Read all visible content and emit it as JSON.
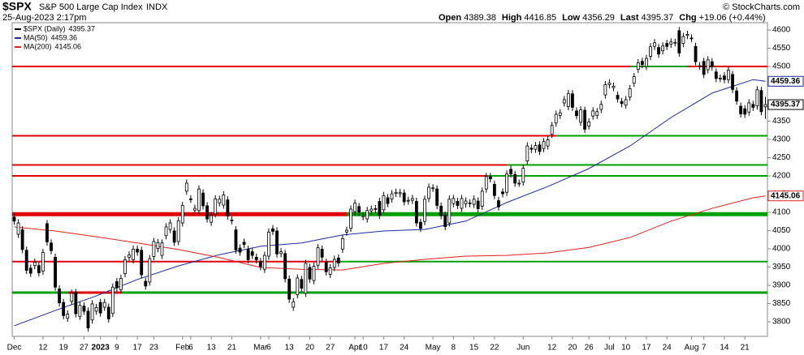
{
  "chart_data": {
    "type": "candlestick",
    "symbol": "$SPX",
    "title": "S&P 500 Large Cap Index",
    "exchange": "INDX",
    "date": "25-Aug-2023 2:17pm",
    "credit": "© StockCharts.com",
    "quote_labels": [
      "Open",
      "High",
      "Low",
      "Last",
      "Chg"
    ],
    "change": "+19.06 (+0.44%)",
    "xlim": [
      -0.5,
      183.5
    ],
    "ylim": [
      3760,
      4620
    ],
    "yticks": [
      3800,
      3850,
      3900,
      3950,
      4000,
      4050,
      4100,
      4150,
      4200,
      4250,
      4300,
      4350,
      4400,
      4450,
      4500,
      4550,
      4600
    ],
    "xticks": [
      {
        "value": 0,
        "label": "Dec"
      },
      {
        "value": 7,
        "label": "12"
      },
      {
        "value": 12,
        "label": "19"
      },
      {
        "value": 17,
        "label": "27"
      },
      {
        "value": 21,
        "label": "2023"
      },
      {
        "value": 25,
        "label": "9"
      },
      {
        "value": 30,
        "label": "17"
      },
      {
        "value": 34,
        "label": "23"
      },
      {
        "value": 41,
        "label": "Feb"
      },
      {
        "value": 43,
        "label": "6"
      },
      {
        "value": 48,
        "label": "13"
      },
      {
        "value": 53,
        "label": "21"
      },
      {
        "value": 60,
        "label": "Mar"
      },
      {
        "value": 62,
        "label": "6"
      },
      {
        "value": 67,
        "label": "13"
      },
      {
        "value": 72,
        "label": "20"
      },
      {
        "value": 77,
        "label": "27"
      },
      {
        "value": 83,
        "label": "Apr"
      },
      {
        "value": 85,
        "label": "10"
      },
      {
        "value": 90,
        "label": "17"
      },
      {
        "value": 95,
        "label": "24"
      },
      {
        "value": 102,
        "label": "May"
      },
      {
        "value": 107,
        "label": "8"
      },
      {
        "value": 112,
        "label": "15"
      },
      {
        "value": 117,
        "label": "22"
      },
      {
        "value": 124,
        "label": "Jun"
      },
      {
        "value": 131,
        "label": "12"
      },
      {
        "value": 136,
        "label": "20"
      },
      {
        "value": 140,
        "label": "26"
      },
      {
        "value": 145,
        "label": "Jul"
      },
      {
        "value": 149,
        "label": "10"
      },
      {
        "value": 154,
        "label": "17"
      },
      {
        "value": 159,
        "label": "24"
      },
      {
        "value": 165,
        "label": "Aug"
      },
      {
        "value": 168,
        "label": "7"
      },
      {
        "value": 173,
        "label": "14"
      },
      {
        "value": 178,
        "label": "21"
      }
    ],
    "series": [
      {
        "name": "$SPX (Daily)",
        "color": "#000000",
        "open": [
          4087,
          4040,
          4052,
          3996,
          3947,
          3954,
          3954,
          3939,
          4069,
          4016,
          3977,
          3890,
          3853,
          3810,
          3856,
          3880,
          3815,
          3843,
          3829,
          3805,
          3829,
          3853,
          3840,
          3840,
          3823,
          3910,
          3888,
          3932,
          3977,
          3970,
          3999,
          3996,
          3911,
          3909,
          3979,
          4001,
          3982,
          4036,
          4053,
          4049,
          4020,
          4071,
          4158,
          4137,
          4106,
          4105,
          4153,
          4118,
          4073,
          4096,
          4126,
          4120,
          4134,
          4077,
          4052,
          4002,
          4018,
          3999,
          3992,
          3977,
          3965,
          3944,
          3980,
          4055,
          4049,
          3987,
          3987,
          3917,
          3840,
          3874,
          3916,
          3878,
          3949,
          3913,
          3955,
          3999,
          3963,
          3930,
          3949,
          3975,
          3999,
          4046,
          4056,
          4102,
          4116,
          4088,
          4082,
          4104,
          4110,
          4130,
          4107,
          4140,
          4137,
          4152,
          4151,
          4153,
          4131,
          4133,
          4130,
          4073,
          4075,
          4138,
          4166,
          4164,
          4117,
          4092,
          4071,
          4124,
          4130,
          4111,
          4123,
          4126,
          4122,
          4131,
          4117,
          4164,
          4198,
          4177,
          4132,
          4156,
          4155,
          4218,
          4204,
          4180,
          4183,
          4241,
          4276,
          4273,
          4285,
          4275,
          4282,
          4314,
          4345,
          4366,
          4400,
          4390,
          4425,
          4378,
          4347,
          4380,
          4337,
          4364,
          4366,
          4382,
          4422,
          4450,
          4442,
          4421,
          4404,
          4394,
          4416,
          4454,
          4492,
          4514,
          4500,
          4528,
          4555,
          4552,
          4543,
          4563,
          4561,
          4565,
          4598,
          4563,
          4585,
          4578,
          4555,
          4501,
          4514,
          4491,
          4513,
          4485,
          4467,
          4474,
          4464,
          4478,
          4433,
          4391,
          4384,
          4375,
          4396,
          4392,
          4434,
          4389.38
        ],
        "high": [
          4097,
          4081,
          4062,
          4006,
          3957,
          3973,
          3964,
          4000,
          4079,
          4026,
          3987,
          3900,
          3863,
          3831,
          3888,
          3890,
          3855,
          3853,
          3839,
          3859,
          3849,
          3863,
          3863,
          3850,
          3905,
          3920,
          3929,
          3980,
          3993,
          4009,
          4009,
          4006,
          3921,
          3983,
          4030,
          4027,
          4026,
          4070,
          4081,
          4059,
          4087,
          4129,
          4190,
          4147,
          4121,
          4174,
          4163,
          4128,
          4101,
          4147,
          4146,
          4158,
          4144,
          4089,
          4062,
          4012,
          4028,
          4009,
          4002,
          3987,
          3975,
          3992,
          4056,
          4065,
          4059,
          4002,
          3997,
          3927,
          3865,
          3930,
          3926,
          3970,
          3959,
          3962,
          4013,
          4009,
          3973,
          3958,
          3981,
          3985,
          4038,
          4061,
          4119,
          4135,
          4126,
          4101,
          4115,
          4119,
          4120,
          4140,
          4156,
          4150,
          4161,
          4165,
          4164,
          4163,
          4143,
          4148,
          4140,
          4083,
          4146,
          4179,
          4177,
          4174,
          4127,
          4102,
          4146,
          4148,
          4140,
          4148,
          4141,
          4136,
          4146,
          4141,
          4168,
          4208,
          4208,
          4187,
          4142,
          4166,
          4215,
          4228,
          4214,
          4190,
          4231,
          4292,
          4286,
          4293,
          4295,
          4304,
          4309,
          4348,
          4379,
          4383,
          4419,
          4436,
          4435,
          4388,
          4391,
          4390,
          4358,
          4388,
          4386,
          4406,
          4460,
          4465,
          4456,
          4431,
          4414,
          4419,
          4449,
          4482,
          4520,
          4524,
          4532,
          4564,
          4575,
          4562,
          4566,
          4573,
          4577,
          4576,
          4608,
          4592,
          4598,
          4588,
          4565,
          4512,
          4524,
          4528,
          4523,
          4495,
          4478,
          4484,
          4500,
          4488,
          4443,
          4401,
          4394,
          4410,
          4406,
          4446,
          4444,
          4416.85
        ],
        "low": [
          4066,
          4030,
          3988,
          3931,
          3923,
          3944,
          3924,
          3929,
          4009,
          3985,
          3885,
          3842,
          3807,
          3800,
          3846,
          3812,
          3805,
          3819,
          3773,
          3795,
          3819,
          3814,
          3830,
          3798,
          3813,
          3883,
          3878,
          3922,
          3967,
          3960,
          3981,
          3919,
          3888,
          3899,
          3969,
          3991,
          3972,
          4026,
          4043,
          4008,
          4010,
          4061,
          4148,
          4126,
          4096,
          4095,
          4108,
          4072,
          4063,
          4086,
          4116,
          4110,
          4080,
          4067,
          3987,
          3981,
          4002,
          3960,
          3972,
          3960,
          3941,
          3934,
          3970,
          4038,
          3976,
          3977,
          3908,
          3852,
          3830,
          3864,
          3882,
          3868,
          3907,
          3903,
          3945,
          3967,
          3927,
          3920,
          3939,
          3951,
          3989,
          4036,
          4046,
          4092,
          4091,
          4078,
          4072,
          4094,
          4098,
          4082,
          4097,
          4114,
          4127,
          4142,
          4141,
          4119,
          4121,
          4123,
          4061,
          4046,
          4065,
          4128,
          4156,
          4109,
          4081,
          4051,
          4061,
          4114,
          4109,
          4101,
          4113,
          4114,
          4112,
          4100,
          4107,
          4154,
          4182,
          4136,
          4105,
          4141,
          4145,
          4195,
          4170,
          4170,
          4173,
          4231,
          4263,
          4263,
          4257,
          4265,
          4272,
          4304,
          4335,
          4356,
          4390,
          4380,
          4378,
          4355,
          4337,
          4318,
          4327,
          4354,
          4356,
          4372,
          4412,
          4440,
          4432,
          4401,
          4388,
          4384,
          4406,
          4444,
          4482,
          4495,
          4490,
          4518,
          4545,
          4524,
          4533,
          4545,
          4551,
          4555,
          4527,
          4553,
          4575,
          4567,
          4503,
          4491,
          4468,
          4481,
          4489,
          4457,
          4457,
          4454,
          4454,
          4427,
          4395,
          4360,
          4359,
          4365,
          4378,
          4382,
          4366,
          4356.29
        ],
        "close": [
          4076,
          4071,
          3998,
          3941,
          3933,
          3963,
          3934,
          3990,
          4019,
          3995,
          3895,
          3852,
          3817,
          3821,
          3878,
          3822,
          3845,
          3829,
          3783,
          3849,
          3839,
          3824,
          3853,
          3808,
          3895,
          3893,
          3919,
          3970,
          3983,
          3999,
          3991,
          3929,
          3898,
          3973,
          4020,
          4017,
          4016,
          4060,
          4071,
          4018,
          4077,
          4119,
          4180,
          4136,
          4111,
          4164,
          4118,
          4082,
          4091,
          4137,
          4136,
          4148,
          4090,
          4079,
          3997,
          3991,
          4012,
          3970,
          3982,
          3970,
          3951,
          3982,
          4046,
          4048,
          3986,
          3992,
          3918,
          3862,
          3855,
          3920,
          3892,
          3960,
          3917,
          3952,
          4003,
          3977,
          3937,
          3948,
          3971,
          3961,
          4028,
          4051,
          4109,
          4125,
          4101,
          4091,
          4105,
          4109,
          4108,
          4092,
          4146,
          4124,
          4151,
          4155,
          4154,
          4129,
          4133,
          4138,
          4071,
          4056,
          4136,
          4169,
          4167,
          4119,
          4091,
          4061,
          4136,
          4138,
          4119,
          4138,
          4131,
          4124,
          4136,
          4110,
          4158,
          4198,
          4192,
          4146,
          4115,
          4151,
          4205,
          4205,
          4180,
          4180,
          4221,
          4282,
          4273,
          4283,
          4267,
          4294,
          4299,
          4338,
          4369,
          4373,
          4409,
          4426,
          4388,
          4365,
          4381,
          4328,
          4348,
          4378,
          4376,
          4396,
          4450,
          4455,
          4446,
          4411,
          4398,
          4409,
          4439,
          4472,
          4510,
          4505,
          4522,
          4554,
          4565,
          4534,
          4556,
          4555,
          4567,
          4566,
          4537,
          4582,
          4588,
          4577,
          4513,
          4502,
          4478,
          4518,
          4499,
          4467,
          4468,
          4464,
          4490,
          4437,
          4405,
          4370,
          4369,
          4400,
          4388,
          4436,
          4376,
          4395.37
        ]
      }
    ],
    "overlays": [
      {
        "name": "MA(50)",
        "color": "#1a2a9c",
        "x": [
          0,
          10,
          20,
          30,
          40,
          50,
          60,
          70,
          80,
          90,
          100,
          110,
          120,
          130,
          140,
          150,
          160,
          170,
          180,
          183
        ],
        "values": [
          3789,
          3831,
          3871,
          3916,
          3953,
          3984,
          4007,
          4016,
          4038,
          4049,
          4053,
          4076,
          4127,
          4171,
          4220,
          4282,
          4360,
          4427,
          4464,
          4459.36
        ]
      },
      {
        "name": "MA(200)",
        "color": "#e02020",
        "x": [
          0,
          10,
          20,
          30,
          40,
          50,
          60,
          70,
          80,
          90,
          100,
          110,
          120,
          130,
          140,
          150,
          160,
          170,
          180,
          183
        ],
        "values": [
          4060,
          4049,
          4033,
          4016,
          3998,
          3976,
          3949,
          3944,
          3942,
          3960,
          3971,
          3980,
          3982,
          3989,
          4004,
          4031,
          4076,
          4111,
          4140,
          4145.06
        ]
      }
    ],
    "levels": [
      {
        "value": 4500,
        "width": 2,
        "segments": [
          {
            "x": [
              -0.5,
              150
            ],
            "color": "#e00000"
          },
          {
            "x": [
              150,
              164
            ],
            "color": "#00a000"
          },
          {
            "x": [
              164,
              183.5
            ],
            "color": "#e00000"
          }
        ]
      },
      {
        "value": 4310,
        "width": 2,
        "segments": [
          {
            "x": [
              -0.5,
              132
            ],
            "color": "#e00000"
          },
          {
            "x": [
              132,
              183.5
            ],
            "color": "#00a000"
          }
        ]
      },
      {
        "value": 4230,
        "width": 2,
        "segments": [
          {
            "x": [
              -0.5,
              120
            ],
            "color": "#e00000"
          },
          {
            "x": [
              120,
              183.5
            ],
            "color": "#00a000"
          }
        ]
      },
      {
        "value": 4200,
        "width": 2,
        "segments": [
          {
            "x": [
              -0.5,
              115
            ],
            "color": "#e00000"
          },
          {
            "x": [
              115,
              183.5
            ],
            "color": "#00a000"
          }
        ]
      },
      {
        "value": 4095,
        "width": 5,
        "segments": [
          {
            "x": [
              -0.5,
              81
            ],
            "color": "#e00000"
          },
          {
            "x": [
              81,
              183.5
            ],
            "color": "#00a000"
          }
        ]
      },
      {
        "value": 3965,
        "width": 2,
        "segments": [
          {
            "x": [
              -0.5,
              79
            ],
            "color": "#e00000"
          },
          {
            "x": [
              79,
              183.5
            ],
            "color": "#00a000"
          }
        ]
      },
      {
        "value": 3880,
        "width": 3,
        "segments": [
          {
            "x": [
              -0.5,
              13
            ],
            "color": "#00a000"
          },
          {
            "x": [
              13,
              26
            ],
            "color": "#e00000"
          },
          {
            "x": [
              26,
              183.5
            ],
            "color": "#00a000"
          }
        ]
      }
    ]
  }
}
